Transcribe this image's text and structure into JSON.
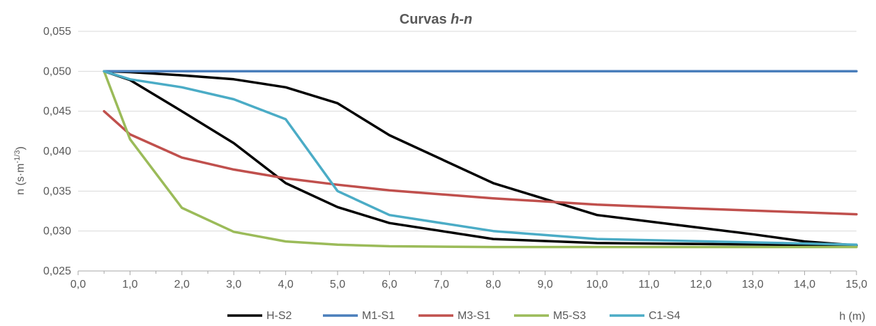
{
  "chart_data": {
    "type": "line",
    "title_main": "Curvas ",
    "title_italic": "h-n",
    "xlabel": "h (m)",
    "ylabel_main": "n (s·m",
    "ylabel_sup": "-1/3",
    "ylabel_end": ")",
    "xlim": [
      0,
      15
    ],
    "ylim": [
      0.025,
      0.055
    ],
    "x_ticks": [
      0,
      1,
      2,
      3,
      4,
      5,
      6,
      7,
      8,
      9,
      10,
      11,
      12,
      13,
      14,
      15
    ],
    "x_tick_labels": [
      "0,0",
      "1,0",
      "2,0",
      "3,0",
      "4,0",
      "5,0",
      "6,0",
      "7,0",
      "8,0",
      "9,0",
      "10,0",
      "11,0",
      "12,0",
      "13,0",
      "14,0",
      "15,0"
    ],
    "y_ticks": [
      0.025,
      0.03,
      0.035,
      0.04,
      0.045,
      0.05,
      0.055
    ],
    "y_tick_labels": [
      "0,025",
      "0,030",
      "0,035",
      "0,040",
      "0,045",
      "0,050",
      "0,055"
    ],
    "grid": "horizontal",
    "legend_position": "bottom",
    "series": [
      {
        "name": "H-S2",
        "color": "#000000",
        "x": [
          0.5,
          1.0,
          2.0,
          3.0,
          4.0,
          5.0,
          6.0,
          8.0,
          10.0,
          15.0,
          14.0,
          13.0,
          12.0,
          10.0,
          8.0,
          6.0,
          5.0,
          4.0,
          3.0,
          2.0,
          1.0,
          0.5
        ],
        "y": [
          0.05,
          0.0489,
          0.045,
          0.041,
          0.036,
          0.033,
          0.031,
          0.029,
          0.0285,
          0.0282,
          0.0287,
          0.0296,
          0.0304,
          0.032,
          0.036,
          0.042,
          0.046,
          0.048,
          0.049,
          0.0495,
          0.0499,
          0.05
        ]
      },
      {
        "name": "M1-S1",
        "color": "#4A7EBB",
        "x": [
          0.5,
          15.0
        ],
        "y": [
          0.05,
          0.05
        ]
      },
      {
        "name": "M3-S1",
        "color": "#C0504D",
        "x": [
          0.5,
          1.0,
          2.0,
          3.0,
          4.0,
          5.0,
          6.0,
          8.0,
          10.0,
          12.0,
          15.0
        ],
        "y": [
          0.045,
          0.0421,
          0.0392,
          0.0377,
          0.0366,
          0.0358,
          0.0351,
          0.0341,
          0.0333,
          0.0328,
          0.0321
        ]
      },
      {
        "name": "M5-S3",
        "color": "#9BBB59",
        "x": [
          0.5,
          1.0,
          2.0,
          3.0,
          4.0,
          5.0,
          6.0,
          8.0,
          10.0,
          15.0
        ],
        "y": [
          0.05,
          0.0415,
          0.0329,
          0.0299,
          0.0287,
          0.0283,
          0.0281,
          0.028,
          0.028,
          0.028
        ]
      },
      {
        "name": "C1-S4",
        "color": "#4BACC6",
        "x": [
          0.5,
          1.0,
          2.0,
          3.0,
          4.0,
          5.0,
          6.0,
          8.0,
          10.0,
          15.0
        ],
        "y": [
          0.05,
          0.049,
          0.048,
          0.0465,
          0.044,
          0.035,
          0.032,
          0.03,
          0.029,
          0.0283
        ]
      }
    ]
  }
}
